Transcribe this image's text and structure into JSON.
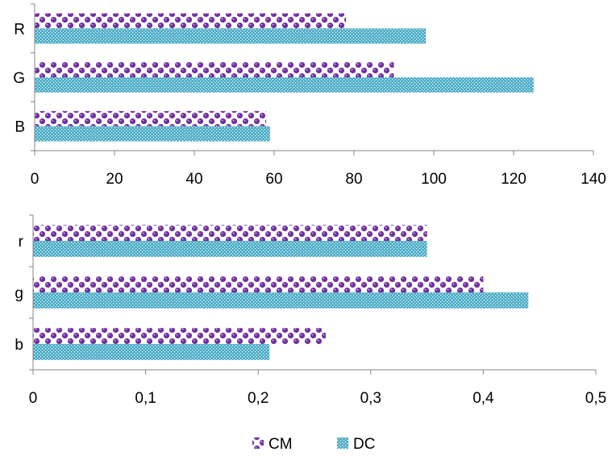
{
  "colors": {
    "cm": "#7030a0",
    "dc": "#4bacc6",
    "axis": "#868686"
  },
  "legend": {
    "position": "bottom",
    "items": [
      {
        "name": "CM",
        "pattern": "spheres-purple"
      },
      {
        "name": "DC",
        "pattern": "crosshatch-teal"
      }
    ]
  },
  "chart_data": [
    {
      "type": "bar",
      "orientation": "horizontal",
      "categories": [
        "R",
        "G",
        "B"
      ],
      "series": [
        {
          "name": "CM",
          "values": [
            78,
            90,
            58
          ]
        },
        {
          "name": "DC",
          "values": [
            98,
            125,
            59
          ]
        }
      ],
      "xlim": [
        0,
        140
      ],
      "ticks": [
        "0",
        "20",
        "40",
        "60",
        "80",
        "100",
        "120",
        "140"
      ],
      "tick_values": [
        0,
        20,
        40,
        60,
        80,
        100,
        120,
        140
      ],
      "grid": false
    },
    {
      "type": "bar",
      "orientation": "horizontal",
      "categories": [
        "r",
        "g",
        "b"
      ],
      "series": [
        {
          "name": "CM",
          "values": [
            0.35,
            0.4,
            0.26
          ]
        },
        {
          "name": "DC",
          "values": [
            0.35,
            0.44,
            0.21
          ]
        }
      ],
      "xlim": [
        0,
        0.5
      ],
      "ticks": [
        "0",
        "0,1",
        "0,2",
        "0,3",
        "0,4",
        "0,5"
      ],
      "tick_values": [
        0,
        0.1,
        0.2,
        0.3,
        0.4,
        0.5
      ],
      "grid": false
    }
  ]
}
